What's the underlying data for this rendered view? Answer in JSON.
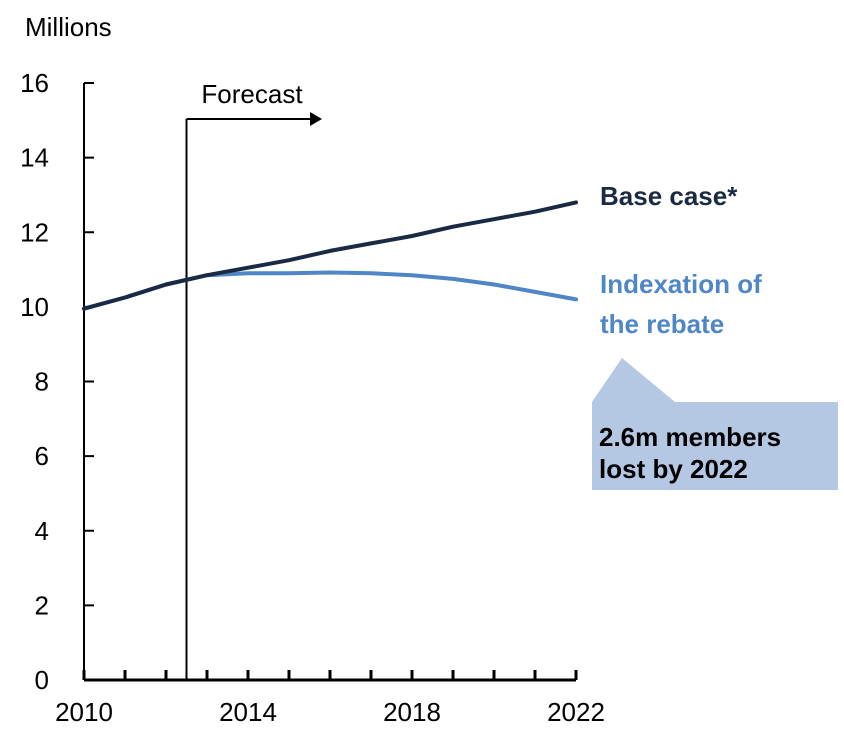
{
  "chart_data": {
    "type": "line",
    "unit_label": "Millions",
    "x": [
      2010,
      2011,
      2012,
      2013,
      2014,
      2015,
      2016,
      2017,
      2018,
      2019,
      2020,
      2021,
      2022
    ],
    "xlim": [
      2010,
      2022
    ],
    "ylim": [
      0,
      16
    ],
    "x_ticks": [
      2010,
      2014,
      2018,
      2022
    ],
    "y_ticks": [
      0,
      2,
      4,
      6,
      8,
      10,
      12,
      14,
      16
    ],
    "grid": false,
    "series": [
      {
        "name": "Base case*",
        "color": "#1a2a44",
        "values": [
          9.95,
          10.25,
          10.6,
          10.85,
          11.05,
          11.25,
          11.5,
          11.7,
          11.9,
          12.15,
          12.35,
          12.55,
          12.8
        ]
      },
      {
        "name": "Indexation of the rebate",
        "color": "#4f86c6",
        "values": [
          9.95,
          10.25,
          10.6,
          10.85,
          10.9,
          10.9,
          10.92,
          10.9,
          10.85,
          10.75,
          10.6,
          10.4,
          10.2
        ]
      }
    ],
    "annotations": {
      "forecast": {
        "label": "Forecast",
        "x": 2012.5
      },
      "callout": {
        "lines": [
          "2.6m members",
          "lost by 2022"
        ],
        "fill": "#b4c8e4"
      }
    }
  }
}
